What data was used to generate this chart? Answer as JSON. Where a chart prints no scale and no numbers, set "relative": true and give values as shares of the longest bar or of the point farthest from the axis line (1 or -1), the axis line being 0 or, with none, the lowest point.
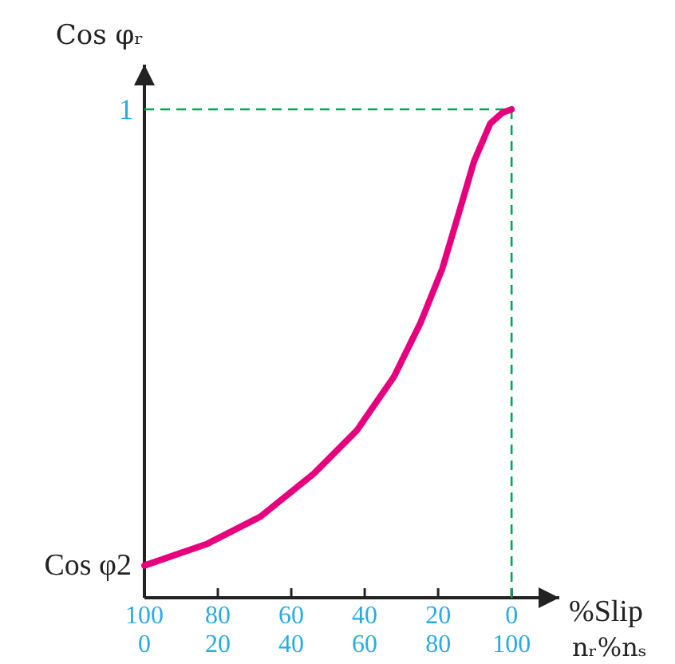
{
  "chart_data": {
    "type": "line",
    "relative": true,
    "xlabel": "%Slip",
    "ylabel": "Cos φᵣ",
    "x2label": "nᵣ%nₛ",
    "x": [
      100,
      83,
      68.4,
      53.9,
      42.2,
      32,
      24.8,
      18.9,
      14.5,
      10.2,
      5.8,
      2.5,
      0
    ],
    "xlim": [
      100,
      -13
    ],
    "xticks": [
      100,
      80,
      60,
      40,
      20,
      0
    ],
    "x2lim": [
      0,
      113
    ],
    "x2ticks": [
      0,
      20,
      40,
      60,
      80,
      100
    ],
    "series": [
      {
        "color": "#e6007e",
        "values": [
          0.066,
          0.11,
          0.166,
          0.254,
          0.342,
          0.453,
          0.563,
          0.673,
          0.784,
          0.894,
          0.971,
          0.993,
          1
        ]
      }
    ],
    "ref_lines": [
      {
        "axis": "y",
        "value": 1,
        "label": "1",
        "color": "#00a651",
        "line_style": "dashed"
      },
      {
        "axis": "x",
        "value": 0,
        "label": null,
        "color": "#00a651",
        "line_style": "dashed"
      }
    ],
    "annotations": [
      {
        "text": "Cos φ2",
        "x": 100,
        "y": 0.066
      }
    ]
  }
}
